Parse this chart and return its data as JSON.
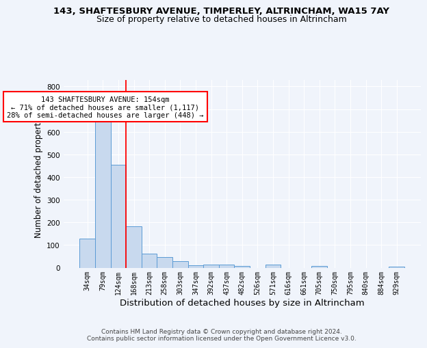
{
  "title1": "143, SHAFTESBURY AVENUE, TIMPERLEY, ALTRINCHAM, WA15 7AY",
  "title2": "Size of property relative to detached houses in Altrincham",
  "xlabel": "Distribution of detached houses by size in Altrincham",
  "ylabel": "Number of detached properties",
  "categories": [
    "34sqm",
    "79sqm",
    "124sqm",
    "168sqm",
    "213sqm",
    "258sqm",
    "303sqm",
    "347sqm",
    "392sqm",
    "437sqm",
    "482sqm",
    "526sqm",
    "571sqm",
    "616sqm",
    "661sqm",
    "705sqm",
    "750sqm",
    "795sqm",
    "840sqm",
    "884sqm",
    "929sqm"
  ],
  "values": [
    127,
    660,
    453,
    184,
    62,
    48,
    29,
    12,
    15,
    15,
    9,
    0,
    13,
    0,
    0,
    9,
    0,
    0,
    0,
    0,
    5
  ],
  "bar_color": "#c8d9ee",
  "bar_edge_color": "#5b9bd5",
  "red_line_x": 2.5,
  "annotation_text": "143 SHAFTESBURY AVENUE: 154sqm\n← 71% of detached houses are smaller (1,117)\n28% of semi-detached houses are larger (448) →",
  "annotation_box_color": "white",
  "annotation_box_edge_color": "red",
  "footer_text": "Contains HM Land Registry data © Crown copyright and database right 2024.\nContains public sector information licensed under the Open Government Licence v3.0.",
  "bg_color": "#f0f4fb",
  "grid_color": "white",
  "ylim": [
    0,
    830
  ],
  "title1_fontsize": 9.5,
  "title2_fontsize": 9,
  "xlabel_fontsize": 9.5,
  "ylabel_fontsize": 8.5,
  "tick_fontsize": 7,
  "footer_fontsize": 6.5,
  "annot_fontsize": 7.5
}
